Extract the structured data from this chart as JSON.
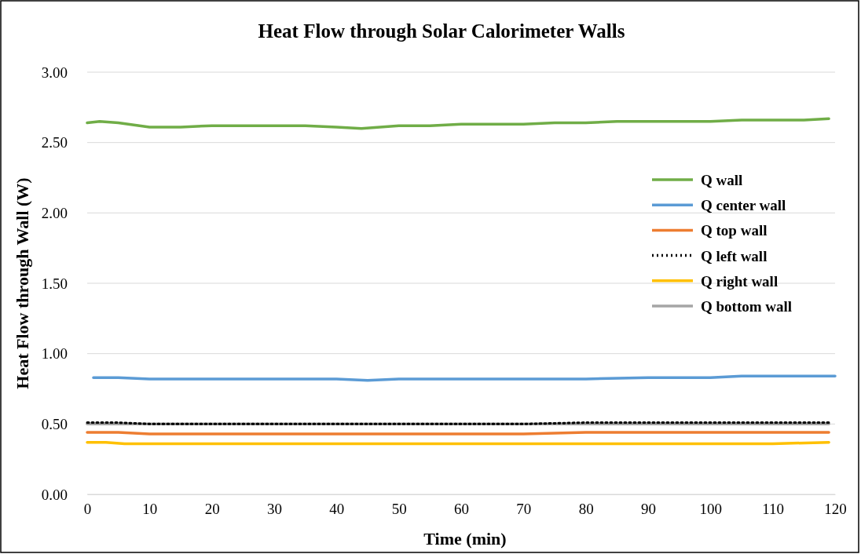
{
  "chart_data": {
    "type": "line",
    "title": "Heat Flow through Solar Calorimeter Walls",
    "xlabel": "Time (min)",
    "ylabel": "Heat Flow through Wall (W)",
    "xlim": [
      0,
      120
    ],
    "xticks": [
      0,
      10,
      20,
      30,
      40,
      50,
      60,
      70,
      80,
      90,
      100,
      110,
      120
    ],
    "ylim": [
      0,
      3
    ],
    "yticks": [
      {
        "value": 0,
        "label": "0.00"
      },
      {
        "value": 0.5,
        "label": "0.50"
      },
      {
        "value": 1,
        "label": "1.00"
      },
      {
        "value": 1.5,
        "label": "1.50"
      },
      {
        "value": 2,
        "label": "2.00"
      },
      {
        "value": 2.5,
        "label": "2.50"
      },
      {
        "value": 3,
        "label": "3.00"
      }
    ],
    "grid": "y",
    "legend": "right",
    "marker": "none",
    "series": [
      {
        "name": "Q wall",
        "color": "#70ad47",
        "x": [
          0,
          2,
          5,
          10,
          15,
          20,
          25,
          30,
          35,
          40,
          44,
          50,
          55,
          60,
          65,
          70,
          75,
          80,
          85,
          90,
          95,
          100,
          105,
          110,
          115,
          119
        ],
        "values": [
          2.64,
          2.65,
          2.64,
          2.61,
          2.61,
          2.62,
          2.62,
          2.62,
          2.62,
          2.61,
          2.6,
          2.62,
          2.62,
          2.63,
          2.63,
          2.63,
          2.64,
          2.64,
          2.65,
          2.65,
          2.65,
          2.65,
          2.66,
          2.66,
          2.66,
          2.67
        ]
      },
      {
        "name": "Q center wall",
        "color": "#5b9bd5",
        "x": [
          1,
          5,
          10,
          15,
          20,
          30,
          40,
          45,
          50,
          60,
          70,
          80,
          90,
          100,
          105,
          110,
          115,
          120
        ],
        "values": [
          0.83,
          0.83,
          0.82,
          0.82,
          0.82,
          0.82,
          0.82,
          0.81,
          0.82,
          0.82,
          0.82,
          0.82,
          0.83,
          0.83,
          0.84,
          0.84,
          0.84,
          0.84
        ]
      },
      {
        "name": "Q top wall",
        "color": "#ed7d31",
        "x": [
          0,
          5,
          10,
          20,
          30,
          40,
          45,
          50,
          60,
          70,
          80,
          90,
          100,
          110,
          119
        ],
        "values": [
          0.44,
          0.44,
          0.43,
          0.43,
          0.43,
          0.43,
          0.43,
          0.43,
          0.43,
          0.43,
          0.44,
          0.44,
          0.44,
          0.44,
          0.44
        ]
      },
      {
        "name": "Q left wall",
        "color": "#000000",
        "line_style": "dotted",
        "x": [
          0,
          5,
          10,
          20,
          30,
          40,
          50,
          60,
          70,
          80,
          90,
          100,
          110,
          119
        ],
        "values": [
          0.51,
          0.51,
          0.5,
          0.5,
          0.5,
          0.5,
          0.5,
          0.5,
          0.5,
          0.51,
          0.51,
          0.51,
          0.51,
          0.51
        ]
      },
      {
        "name": "Q right wall",
        "color": "#ffc000",
        "x": [
          0,
          3,
          6,
          10,
          20,
          30,
          40,
          50,
          60,
          70,
          80,
          90,
          100,
          110,
          119
        ],
        "values": [
          0.37,
          0.37,
          0.36,
          0.36,
          0.36,
          0.36,
          0.36,
          0.36,
          0.36,
          0.36,
          0.36,
          0.36,
          0.36,
          0.36,
          0.37
        ]
      },
      {
        "name": "Q bottom wall",
        "color": "#a5a5a5",
        "x": [
          0,
          5,
          10,
          20,
          30,
          40,
          50,
          60,
          70,
          80,
          90,
          100,
          110,
          119
        ],
        "values": [
          0.5,
          0.5,
          0.5,
          0.5,
          0.5,
          0.5,
          0.5,
          0.5,
          0.5,
          0.5,
          0.5,
          0.5,
          0.5,
          0.5
        ]
      }
    ]
  }
}
